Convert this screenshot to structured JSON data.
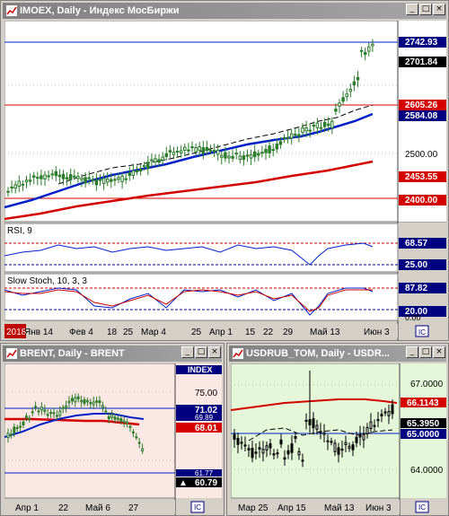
{
  "windows": {
    "imoex": {
      "title": "IMOEX, Daily - Индекс МосБиржи",
      "price_labels": [
        "2742.93",
        "2701.84",
        "2605.26",
        "2584.08",
        "2500.00",
        "2453.55",
        "2400.00"
      ],
      "rsi": {
        "label": "RSI, 9",
        "value": "68.57",
        "level": "25.00"
      },
      "stoch": {
        "label": "Slow Stoch, 10, 3, 3",
        "value": "87.82",
        "level": "20.00",
        "zero": "0.00"
      },
      "dates": [
        "2018",
        "Янв 14",
        "Фев 4",
        "18",
        "25",
        "Мар 4",
        "25",
        "Апр 1",
        "15",
        "22",
        "29",
        "Май 13",
        "Июн 3"
      ]
    },
    "brent": {
      "title": "BRENT, Daily - BRENT",
      "index_label": "INDEX",
      "price_labels": [
        "75.00",
        "71.02",
        "69.89",
        "68.01",
        "61.77",
        "60.79"
      ],
      "dates": [
        "Апр 1",
        "22",
        "Май 6",
        "27"
      ]
    },
    "usdrub": {
      "title": "USDRUB_TOM, Daily - USDR...",
      "price_labels": [
        "67.0000",
        "66.1143",
        "65.3950",
        "65.0000",
        "64.0000"
      ],
      "dates": [
        "Мар 25",
        "Апр 15",
        "Май 13",
        "Июн 3"
      ]
    }
  },
  "colors": {
    "main_bg": "#ffffff",
    "brent_bg": "#fbe7e4",
    "usdrub_bg": "#e4f8d9",
    "ma_red": "#d40000",
    "ma_blue": "#0020c8",
    "candle_green": "#2d7d2d",
    "label_black": "#000000",
    "label_navy": "#000080"
  }
}
